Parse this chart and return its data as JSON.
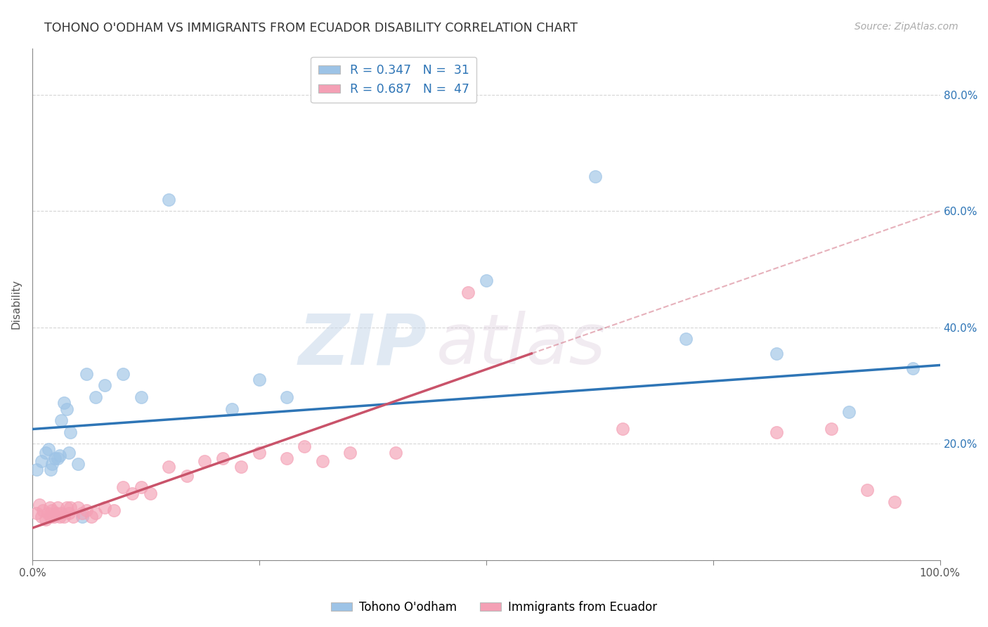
{
  "title": "TOHONO O'ODHAM VS IMMIGRANTS FROM ECUADOR DISABILITY CORRELATION CHART",
  "source": "Source: ZipAtlas.com",
  "ylabel": "Disability",
  "xlim": [
    0,
    1.0
  ],
  "ylim": [
    0,
    0.88
  ],
  "legend_R1": "R = 0.347",
  "legend_N1": "N =  31",
  "legend_R2": "R = 0.687",
  "legend_N2": "N =  47",
  "blue_color": "#9dc3e6",
  "pink_color": "#f4a0b5",
  "blue_line_color": "#2e75b6",
  "pink_line_color": "#c9536a",
  "background_color": "#ffffff",
  "tohono_x": [
    0.005,
    0.01,
    0.015,
    0.018,
    0.02,
    0.022,
    0.025,
    0.028,
    0.03,
    0.032,
    0.035,
    0.038,
    0.04,
    0.042,
    0.05,
    0.055,
    0.06,
    0.07,
    0.08,
    0.1,
    0.12,
    0.15,
    0.22,
    0.25,
    0.28,
    0.5,
    0.62,
    0.72,
    0.82,
    0.9,
    0.97
  ],
  "tohono_y": [
    0.155,
    0.17,
    0.185,
    0.19,
    0.155,
    0.165,
    0.175,
    0.175,
    0.18,
    0.24,
    0.27,
    0.26,
    0.185,
    0.22,
    0.165,
    0.075,
    0.32,
    0.28,
    0.3,
    0.32,
    0.28,
    0.62,
    0.26,
    0.31,
    0.28,
    0.48,
    0.66,
    0.38,
    0.355,
    0.255,
    0.33
  ],
  "ecuador_x": [
    0.005,
    0.008,
    0.01,
    0.012,
    0.015,
    0.017,
    0.019,
    0.02,
    0.022,
    0.024,
    0.026,
    0.028,
    0.03,
    0.032,
    0.035,
    0.038,
    0.04,
    0.042,
    0.045,
    0.05,
    0.055,
    0.06,
    0.065,
    0.07,
    0.08,
    0.09,
    0.1,
    0.11,
    0.12,
    0.13,
    0.15,
    0.17,
    0.19,
    0.21,
    0.23,
    0.25,
    0.28,
    0.3,
    0.32,
    0.35,
    0.4,
    0.48,
    0.65,
    0.82,
    0.88,
    0.92,
    0.95
  ],
  "ecuador_y": [
    0.08,
    0.095,
    0.075,
    0.085,
    0.07,
    0.08,
    0.09,
    0.075,
    0.085,
    0.075,
    0.08,
    0.09,
    0.075,
    0.08,
    0.075,
    0.09,
    0.08,
    0.09,
    0.075,
    0.09,
    0.08,
    0.085,
    0.075,
    0.08,
    0.09,
    0.085,
    0.125,
    0.115,
    0.125,
    0.115,
    0.16,
    0.145,
    0.17,
    0.175,
    0.16,
    0.185,
    0.175,
    0.195,
    0.17,
    0.185,
    0.185,
    0.46,
    0.225,
    0.22,
    0.225,
    0.12,
    0.1
  ],
  "blue_line_x0": 0.0,
  "blue_line_y0": 0.225,
  "blue_line_x1": 1.0,
  "blue_line_y1": 0.335,
  "pink_line_x0": 0.0,
  "pink_line_y0": 0.055,
  "pink_line_x1": 0.55,
  "pink_line_y1": 0.355,
  "dash_line_x0": 0.55,
  "dash_line_y0": 0.355,
  "dash_line_x1": 1.0,
  "dash_line_y1": 0.6
}
